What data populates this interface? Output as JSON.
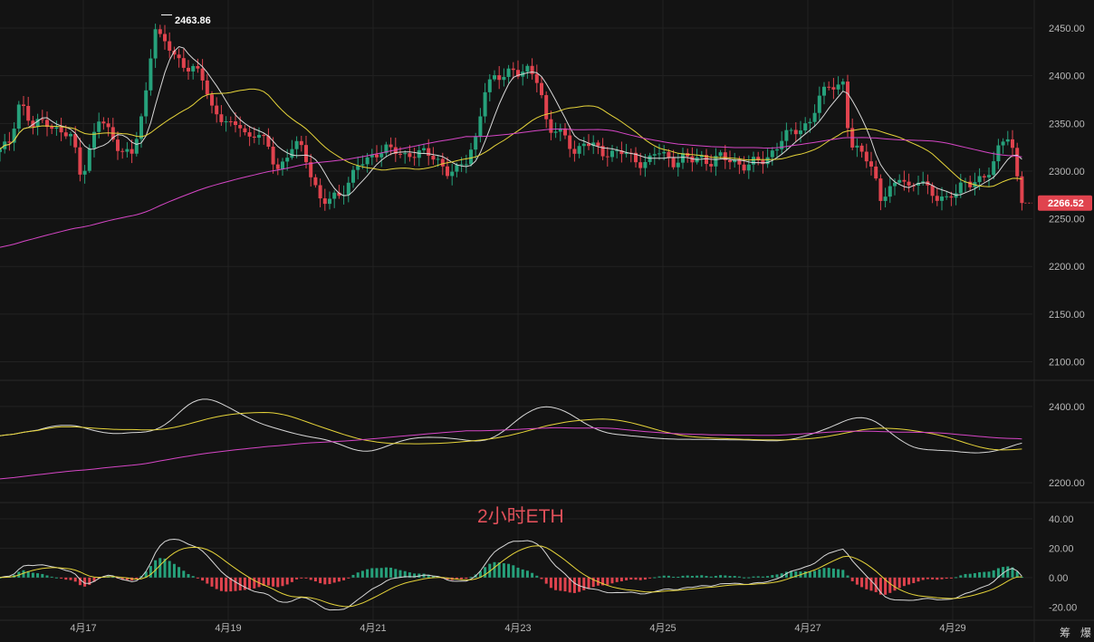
{
  "overlay_title": "2小时ETH",
  "last_price_label": "2266.52",
  "high_marker_label": "2463.86",
  "corner_buttons": [
    "筹",
    "爆"
  ],
  "colors": {
    "background": "#131313",
    "up": "#26a17b",
    "down": "#e0434e",
    "ma_fast": "#d8d8d8",
    "ma_mid": "#e6d43a",
    "ma_slow": "#d646c6",
    "macd_signal": "#e6d43a",
    "macd_line": "#d8d8d8"
  },
  "chart_data": [
    {
      "type": "candlestick",
      "title": "",
      "x_tick_labels": [
        "4月17",
        "4月19",
        "4月21",
        "4月23",
        "4月25",
        "4月27",
        "4月29"
      ],
      "y_tick_labels": [
        "2450.00",
        "2400.00",
        "2350.00",
        "2300.00",
        "2250.00",
        "2200.00",
        "2150.00",
        "2100.00"
      ],
      "ylim": [
        2090,
        2470
      ],
      "grid": true,
      "high_marker": 2463.86,
      "last_price": 2266.52,
      "series_close": [
        [
          0,
          2320
        ],
        [
          10,
          2330
        ],
        [
          22,
          2375
        ],
        [
          35,
          2345
        ],
        [
          50,
          2355
        ],
        [
          65,
          2340
        ],
        [
          80,
          2335
        ],
        [
          90,
          2295
        ],
        [
          100,
          2325
        ],
        [
          110,
          2355
        ],
        [
          122,
          2340
        ],
        [
          135,
          2320
        ],
        [
          145,
          2315
        ],
        [
          155,
          2350
        ],
        [
          163,
          2395
        ],
        [
          170,
          2455
        ],
        [
          178,
          2435
        ],
        [
          186,
          2430
        ],
        [
          195,
          2420
        ],
        [
          205,
          2410
        ],
        [
          215,
          2405
        ],
        [
          225,
          2395
        ],
        [
          235,
          2365
        ],
        [
          245,
          2355
        ],
        [
          255,
          2345
        ],
        [
          265,
          2350
        ],
        [
          275,
          2335
        ],
        [
          285,
          2340
        ],
        [
          295,
          2325
        ],
        [
          305,
          2305
        ],
        [
          315,
          2310
        ],
        [
          325,
          2330
        ],
        [
          335,
          2320
        ],
        [
          345,
          2295
        ],
        [
          355,
          2265
        ],
        [
          365,
          2270
        ],
        [
          375,
          2275
        ],
        [
          385,
          2290
        ],
        [
          395,
          2305
        ],
        [
          405,
          2310
        ],
        [
          415,
          2320
        ],
        [
          425,
          2325
        ],
        [
          435,
          2320
        ],
        [
          445,
          2315
        ],
        [
          455,
          2320
        ],
        [
          465,
          2320
        ],
        [
          475,
          2315
        ],
        [
          485,
          2310
        ],
        [
          495,
          2300
        ],
        [
          505,
          2300
        ],
        [
          515,
          2310
        ],
        [
          525,
          2335
        ],
        [
          535,
          2385
        ],
        [
          545,
          2395
        ],
        [
          555,
          2400
        ],
        [
          565,
          2410
        ],
        [
          575,
          2400
        ],
        [
          585,
          2405
        ],
        [
          595,
          2395
        ],
        [
          605,
          2345
        ],
        [
          615,
          2340
        ],
        [
          625,
          2335
        ],
        [
          635,
          2320
        ],
        [
          645,
          2330
        ],
        [
          655,
          2325
        ],
        [
          665,
          2320
        ],
        [
          675,
          2320
        ],
        [
          685,
          2320
        ],
        [
          695,
          2315
        ],
        [
          705,
          2310
        ],
        [
          715,
          2310
        ],
        [
          725,
          2320
        ],
        [
          735,
          2315
        ],
        [
          745,
          2310
        ],
        [
          755,
          2315
        ],
        [
          765,
          2310
        ],
        [
          775,
          2315
        ],
        [
          785,
          2310
        ],
        [
          795,
          2315
        ],
        [
          805,
          2310
        ],
        [
          815,
          2310
        ],
        [
          825,
          2305
        ],
        [
          835,
          2310
        ],
        [
          845,
          2310
        ],
        [
          855,
          2325
        ],
        [
          865,
          2335
        ],
        [
          875,
          2340
        ],
        [
          885,
          2345
        ],
        [
          895,
          2355
        ],
        [
          905,
          2375
        ],
        [
          915,
          2390
        ],
        [
          925,
          2390
        ],
        [
          932,
          2395
        ],
        [
          938,
          2325
        ],
        [
          945,
          2320
        ],
        [
          952,
          2320
        ],
        [
          958,
          2315
        ],
        [
          965,
          2300
        ],
        [
          972,
          2270
        ],
        [
          980,
          2275
        ],
        [
          988,
          2285
        ],
        [
          995,
          2300
        ],
        [
          1005,
          2280
        ],
        [
          1015,
          2290
        ],
        [
          1025,
          2280
        ],
        [
          1035,
          2275
        ],
        [
          1045,
          2270
        ],
        [
          1055,
          2275
        ],
        [
          1065,
          2290
        ],
        [
          1075,
          2290
        ],
        [
          1085,
          2290
        ],
        [
          1095,
          2300
        ],
        [
          1105,
          2335
        ],
        [
          1112,
          2340
        ],
        [
          1118,
          2320
        ],
        [
          1125,
          2280
        ],
        [
          1132,
          2266.52
        ]
      ]
    },
    {
      "type": "line",
      "title": "",
      "y_tick_labels": [
        "2400.00",
        "2200.00"
      ],
      "ylim": [
        2160,
        2440
      ]
    },
    {
      "type": "bar",
      "title": "",
      "y_tick_labels": [
        "40.00",
        "20.00",
        "0.00",
        "-20.00"
      ],
      "ylim": [
        -26,
        48
      ]
    }
  ]
}
